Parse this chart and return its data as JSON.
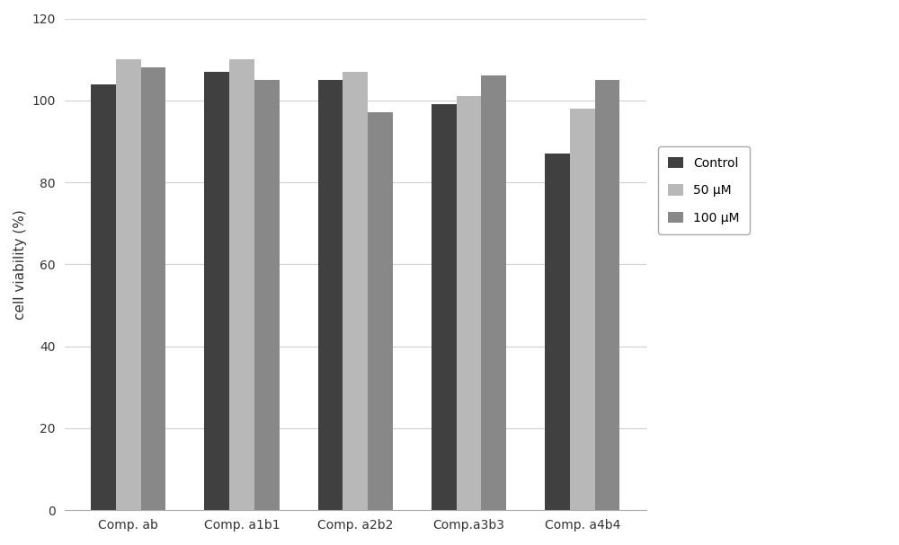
{
  "categories": [
    "Comp. ab",
    "Comp. a1b1",
    "Comp. a2b2",
    "Comp.a3b3",
    "Comp. a4b4"
  ],
  "series": {
    "Control": [
      104,
      107,
      105,
      99,
      87
    ],
    "50 μM": [
      110,
      110,
      107,
      101,
      98
    ],
    "100 μM": [
      108,
      105,
      97,
      106,
      105
    ]
  },
  "colors": {
    "Control": "#404040",
    "50 μM": "#b8b8b8",
    "100 μM": "#888888"
  },
  "ylabel": "cell viability (%)",
  "ylim": [
    0,
    120
  ],
  "yticks": [
    0,
    20,
    40,
    60,
    80,
    100,
    120
  ],
  "bar_width": 0.22,
  "legend_labels": [
    "Control",
    "50 μM",
    "100 μM"
  ],
  "background_color": "#ffffff",
  "figure_bg": "#ffffff"
}
